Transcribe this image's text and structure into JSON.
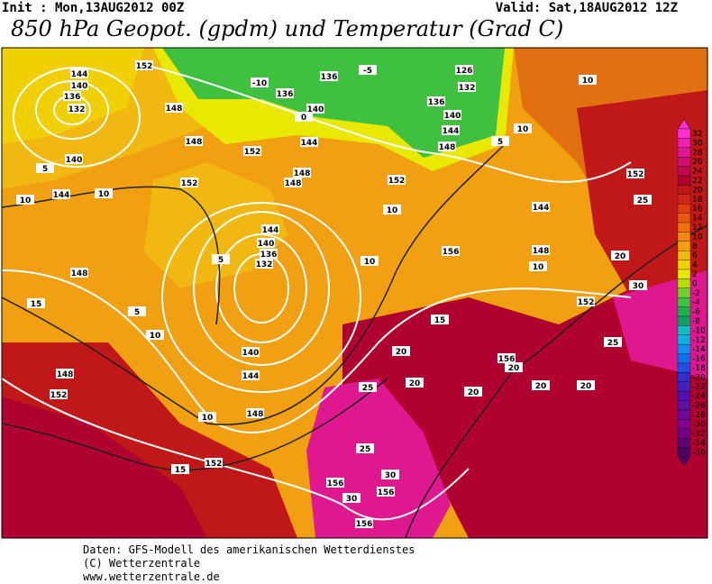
{
  "header": {
    "init": "Init : Mon,13AUG2012 00Z",
    "valid": "Valid: Sat,18AUG2012 12Z",
    "title": "850 hPa Geopot. (gpdm) und Temperatur (Grad C)"
  },
  "colorbar": {
    "levels": [
      32,
      30,
      28,
      26,
      24,
      22,
      20,
      18,
      16,
      14,
      12,
      10,
      8,
      6,
      4,
      2,
      0,
      -2,
      -4,
      -6,
      -8,
      -10,
      -12,
      -14,
      -16,
      -18,
      -20,
      -22,
      -24,
      -26,
      -28,
      -30,
      -32,
      -34,
      -36
    ],
    "colors": [
      "#ff30d0",
      "#f020b0",
      "#e01890",
      "#d01070",
      "#c00850",
      "#b00030",
      "#c01818",
      "#d02818",
      "#e04010",
      "#e85810",
      "#f07010",
      "#f08810",
      "#f0a010",
      "#f0b810",
      "#f0d000",
      "#e8e800",
      "#b0e000",
      "#70d030",
      "#40c040",
      "#20b050",
      "#10a060",
      "#10c0c0",
      "#10b0e0",
      "#1090f0",
      "#1070f0",
      "#2050e0",
      "#3030d0",
      "#4020c0",
      "#5010b0",
      "#6010a0",
      "#700898",
      "#800090",
      "#700080",
      "#600070",
      "#500060"
    ]
  },
  "contour_labels": {
    "geopotential": [
      "144",
      "140",
      "136",
      "132",
      "140",
      "144",
      "152",
      "148",
      "148",
      "152",
      "136",
      "136",
      "140",
      "144",
      "148",
      "148",
      "152",
      "144",
      "140",
      "136",
      "132",
      "140",
      "144",
      "148",
      "152",
      "148",
      "152",
      "148",
      "152",
      "156",
      "152",
      "148",
      "144",
      "152",
      "156",
      "156",
      "156",
      "156",
      "136",
      "140",
      "144",
      "148",
      "132",
      "126"
    ],
    "temperature": [
      "-5",
      "-10",
      "0",
      "5",
      "10",
      "10",
      "15",
      "10",
      "5",
      "10",
      "10",
      "15",
      "20",
      "20",
      "25",
      "20",
      "25",
      "30",
      "30",
      "15",
      "10",
      "20",
      "25",
      "30",
      "20",
      "25",
      "10",
      "10",
      "10",
      "5",
      "5",
      "20",
      "20"
    ]
  },
  "footer": {
    "source": "Daten: GFS-Modell des amerikanischen Wetterdienstes",
    "copyright": "(C) Wetterzentrale",
    "url": "www.wetterzentrale.de"
  }
}
